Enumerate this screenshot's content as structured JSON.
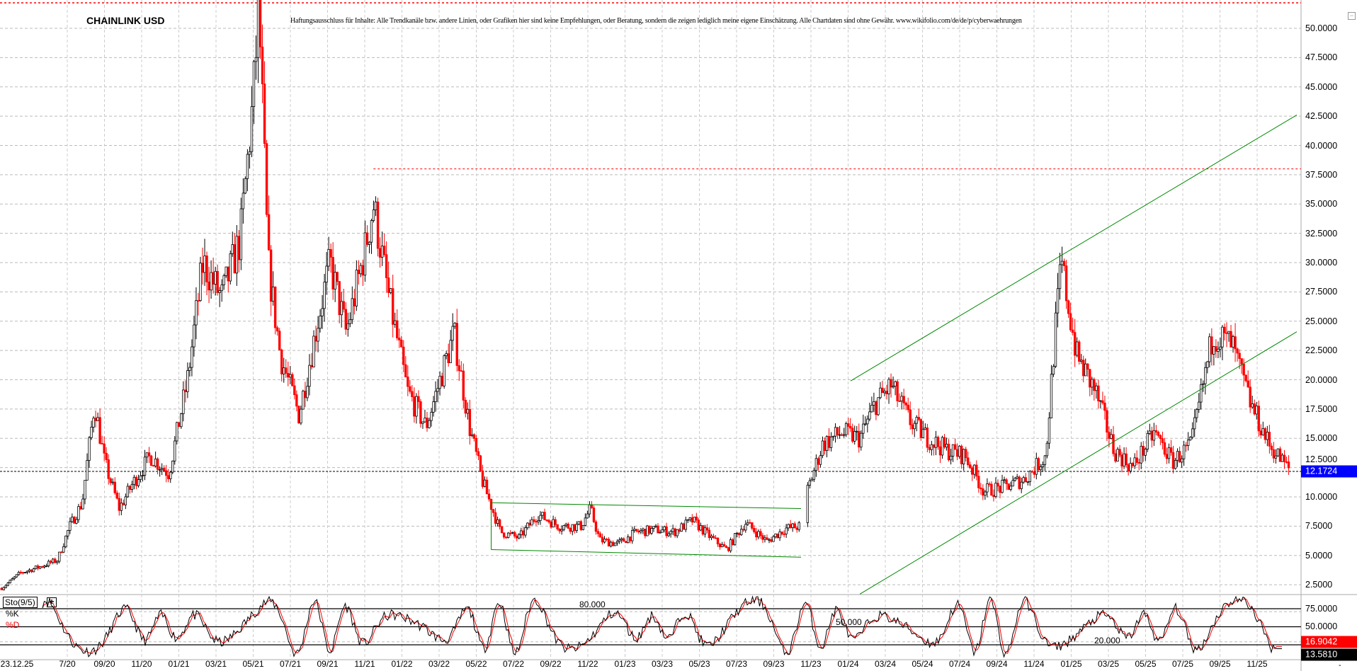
{
  "header": {
    "title": "CHAINLINK USD",
    "disclaimer": "Haftungsausschluss für Inhalte: Alle Trendkanäle bzw. andere Linien, oder Grafiken hier sind keine Empfehlungen, oder Beratung, sondern die zeigen lediglich meine eigene Einschätzung. Alle Chartdaten sind ohne Gewähr.  www.wikifolio.com/de/de/p/cyberwaehrungen"
  },
  "colors": {
    "up": "#000000",
    "down": "#ff0000",
    "trend": "#008000",
    "last_price_bg": "#0000ff",
    "d_bg": "#ff0000",
    "k_bg": "#000000",
    "grid": "#bbbbbb"
  },
  "chart_data": [
    {
      "type": "candlestick",
      "title": "CHAINLINK USD",
      "ylim": [
        0.5,
        52.5
      ],
      "y_ticks": [
        "50.0000",
        "47.5000",
        "45.0000",
        "42.5000",
        "40.0000",
        "37.5000",
        "35.0000",
        "32.5000",
        "30.0000",
        "27.5000",
        "25.0000",
        "22.5000",
        "20.0000",
        "17.5000",
        "15.0000",
        "12.5000",
        "10.0000",
        "7.5000",
        "5.0000",
        "2.5000"
      ],
      "x_ticks": [
        "23.12.25",
        "7/20",
        "09/20",
        "11/20",
        "01/21",
        "03/21",
        "05/21",
        "07/21",
        "09/21",
        "11/21",
        "01/22",
        "03/22",
        "05/22",
        "07/22",
        "09/22",
        "11/22",
        "01/23",
        "03/23",
        "05/23",
        "07/23",
        "09/23",
        "11/23",
        "01/24",
        "03/24",
        "05/24",
        "07/24",
        "09/24",
        "11/24",
        "01/25",
        "03/25",
        "05/25",
        "07/25",
        "09/25",
        "11/25"
      ],
      "grid": true,
      "last_price": "12.1724",
      "price_path": [
        [
          "2020-03-15",
          2.2
        ],
        [
          "2020-04-15",
          3.5
        ],
        [
          "2020-05-15",
          4.0
        ],
        [
          "2020-06-15",
          4.6
        ],
        [
          "2020-07-05",
          7.5
        ],
        [
          "2020-07-25",
          9.5
        ],
        [
          "2020-08-15",
          18.0
        ],
        [
          "2020-09-01",
          13.0
        ],
        [
          "2020-09-25",
          9.0
        ],
        [
          "2020-10-15",
          11.0
        ],
        [
          "2020-11-15",
          13.5
        ],
        [
          "2020-12-15",
          12.0
        ],
        [
          "2021-01-15",
          20.0
        ],
        [
          "2021-02-10",
          30.0
        ],
        [
          "2021-03-10",
          27.0
        ],
        [
          "2021-04-10",
          32.0
        ],
        [
          "2021-05-01",
          44.0
        ],
        [
          "2021-05-10",
          52.0
        ],
        [
          "2021-05-25",
          30.0
        ],
        [
          "2021-06-15",
          22.0
        ],
        [
          "2021-07-15",
          17.0
        ],
        [
          "2021-08-15",
          25.0
        ],
        [
          "2021-09-05",
          30.0
        ],
        [
          "2021-10-01",
          24.0
        ],
        [
          "2021-11-01",
          31.0
        ],
        [
          "2021-11-15",
          35.0
        ],
        [
          "2021-12-10",
          27.0
        ],
        [
          "2022-01-10",
          19.0
        ],
        [
          "2022-02-10",
          16.0
        ],
        [
          "2022-03-25",
          24.0
        ],
        [
          "2022-04-20",
          16.0
        ],
        [
          "2022-05-10",
          11.5
        ],
        [
          "2022-06-10",
          7.0
        ],
        [
          "2022-07-10",
          6.5
        ],
        [
          "2022-08-10",
          8.5
        ],
        [
          "2022-09-15",
          7.5
        ],
        [
          "2022-10-20",
          7.5
        ],
        [
          "2022-11-05",
          9.0
        ],
        [
          "2022-11-20",
          6.3
        ],
        [
          "2022-12-20",
          6.0
        ],
        [
          "2023-01-20",
          7.0
        ],
        [
          "2023-02-20",
          7.2
        ],
        [
          "2023-03-20",
          7.0
        ],
        [
          "2023-04-20",
          8.0
        ],
        [
          "2023-05-20",
          6.5
        ],
        [
          "2023-06-15",
          5.5
        ],
        [
          "2023-07-15",
          7.8
        ],
        [
          "2023-08-20",
          6.2
        ],
        [
          "2023-09-20",
          7.3
        ],
        [
          "2023-10-15",
          7.5
        ],
        [
          "2023-10-25",
          10.5
        ],
        [
          "2023-11-20",
          14.5
        ],
        [
          "2023-12-20",
          15.5
        ],
        [
          "2024-01-20",
          15.0
        ],
        [
          "2024-02-15",
          18.0
        ],
        [
          "2024-03-10",
          19.5
        ],
        [
          "2024-04-10",
          16.5
        ],
        [
          "2024-05-10",
          15.0
        ],
        [
          "2024-06-10",
          14.0
        ],
        [
          "2024-07-10",
          13.5
        ],
        [
          "2024-08-10",
          10.5
        ],
        [
          "2024-09-10",
          10.8
        ],
        [
          "2024-10-15",
          11.5
        ],
        [
          "2024-11-20",
          13.5
        ],
        [
          "2024-12-05",
          24.0
        ],
        [
          "2024-12-15",
          30.0
        ],
        [
          "2025-01-10",
          22.0
        ],
        [
          "2025-02-10",
          19.0
        ],
        [
          "2025-03-10",
          14.0
        ],
        [
          "2025-04-10",
          12.5
        ],
        [
          "2025-05-15",
          15.5
        ],
        [
          "2025-06-15",
          13.0
        ],
        [
          "2025-07-15",
          14.5
        ],
        [
          "2025-08-20",
          24.0
        ],
        [
          "2025-09-20",
          23.0
        ],
        [
          "2025-10-20",
          18.0
        ],
        [
          "2025-11-20",
          14.5
        ],
        [
          "2025-12-25",
          12.17
        ]
      ],
      "gap_after": "2023-10-15",
      "reference_lines": [
        {
          "price": 38.0,
          "from": "2021-11-15",
          "color": "#ff0000"
        }
      ],
      "trend_lines": [
        {
          "from": [
            "2024-01-05",
            19.9
          ],
          "to": [
            "2026-01-05",
            42.6
          ]
        },
        {
          "from": [
            "2024-01-20",
            1.7
          ],
          "to": [
            "2026-01-05",
            24.1
          ]
        },
        {
          "from": [
            "2022-05-25",
            9.5
          ],
          "to": [
            "2023-10-15",
            9.0
          ]
        },
        {
          "from": [
            "2022-05-25",
            5.5
          ],
          "to": [
            "2023-10-15",
            4.85
          ]
        }
      ]
    },
    {
      "type": "line",
      "title": "Sto(9/5)",
      "ylim": [
        0,
        100
      ],
      "levels": [
        {
          "value": 80,
          "label": "80.000"
        },
        {
          "value": 50,
          "label": "50.000"
        },
        {
          "value": 20,
          "label": "20.000"
        }
      ],
      "y_ticks": [
        "75.0000",
        "50.0000"
      ],
      "series": [
        {
          "name": "%K",
          "color": "#000000",
          "last": "13.5810"
        },
        {
          "name": "%D",
          "color": "#ff0000",
          "last": "16.9042"
        }
      ]
    }
  ],
  "panel": {
    "plus": "+",
    "minimize": "−",
    "corner": "-"
  }
}
